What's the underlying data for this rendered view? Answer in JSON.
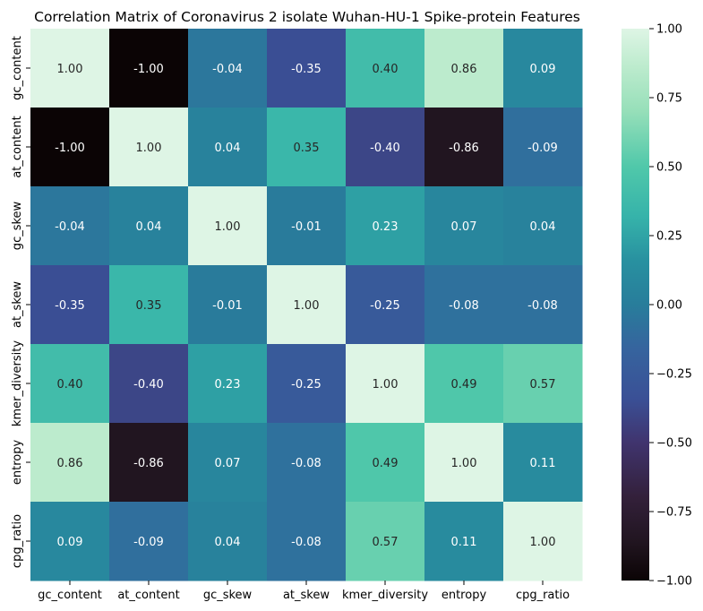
{
  "chart_data": {
    "type": "heatmap",
    "title": "Correlation Matrix of Coronavirus 2 isolate Wuhan-HU-1 Spike-protein Features",
    "xlabel": "",
    "ylabel": "",
    "x_categories": [
      "gc_content",
      "at_content",
      "gc_skew",
      "at_skew",
      "kmer_diversity",
      "entropy",
      "cpg_ratio"
    ],
    "y_categories": [
      "gc_content",
      "at_content",
      "gc_skew",
      "at_skew",
      "kmer_diversity",
      "entropy",
      "cpg_ratio"
    ],
    "values": [
      [
        1.0,
        -1.0,
        -0.04,
        -0.35,
        0.4,
        0.86,
        0.09
      ],
      [
        -1.0,
        1.0,
        0.04,
        0.35,
        -0.4,
        -0.86,
        -0.09
      ],
      [
        -0.04,
        0.04,
        1.0,
        -0.01,
        0.23,
        0.07,
        0.04
      ],
      [
        -0.35,
        0.35,
        -0.01,
        1.0,
        -0.25,
        -0.08,
        -0.08
      ],
      [
        0.4,
        -0.4,
        0.23,
        -0.25,
        1.0,
        0.49,
        0.57
      ],
      [
        0.86,
        -0.86,
        0.07,
        -0.08,
        0.49,
        1.0,
        0.11
      ],
      [
        0.09,
        -0.09,
        0.04,
        -0.08,
        0.57,
        0.11,
        1.0
      ]
    ],
    "colorbar": {
      "vmin": -1.0,
      "vmax": 1.0,
      "ticks": [
        1.0,
        0.75,
        0.5,
        0.25,
        0.0,
        -0.25,
        -0.5,
        -0.75,
        -1.0
      ],
      "tick_labels": [
        "1.00",
        "0.75",
        "0.50",
        "0.25",
        "0.00",
        "−0.25",
        "−0.50",
        "−0.75",
        "−1.00"
      ]
    },
    "colormap": "mako",
    "annotation_format": "2 decimals",
    "grid": false
  }
}
